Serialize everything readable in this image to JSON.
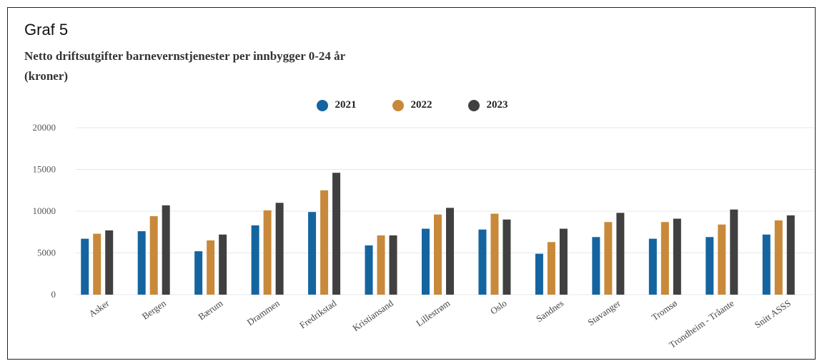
{
  "graf_label": "Graf 5",
  "chart_data": {
    "type": "bar",
    "title_lines": [
      "Netto driftsutgifter barnevernstjenester per innbygger 0-24 år",
      "(kroner)"
    ],
    "categories": [
      "Asker",
      "Bergen",
      "Bærum",
      "Drammen",
      "Fredrikstad",
      "Kristiansand",
      "Lillestrøm",
      "Oslo",
      "Sandnes",
      "Stavanger",
      "Tromsø",
      "Trondheim - Tråante",
      "Snitt ASSS"
    ],
    "series": [
      {
        "name": "2021",
        "color": "#1464a0",
        "values": [
          6700,
          7600,
          5200,
          8300,
          9900,
          5900,
          7900,
          7800,
          4900,
          6900,
          6700,
          6900,
          7200
        ]
      },
      {
        "name": "2022",
        "color": "#c8893a",
        "values": [
          7300,
          9400,
          6500,
          10100,
          12500,
          7100,
          9600,
          9700,
          6300,
          8700,
          8700,
          8400,
          8900
        ]
      },
      {
        "name": "2023",
        "color": "#404040",
        "values": [
          7700,
          10700,
          7200,
          11000,
          14600,
          7100,
          10400,
          9000,
          7900,
          9800,
          9100,
          10200,
          9500
        ]
      }
    ],
    "yticks": [
      0,
      5000,
      10000,
      15000,
      20000
    ],
    "ylim": [
      0,
      20000
    ],
    "legend_position": "top-center",
    "grid": true
  }
}
